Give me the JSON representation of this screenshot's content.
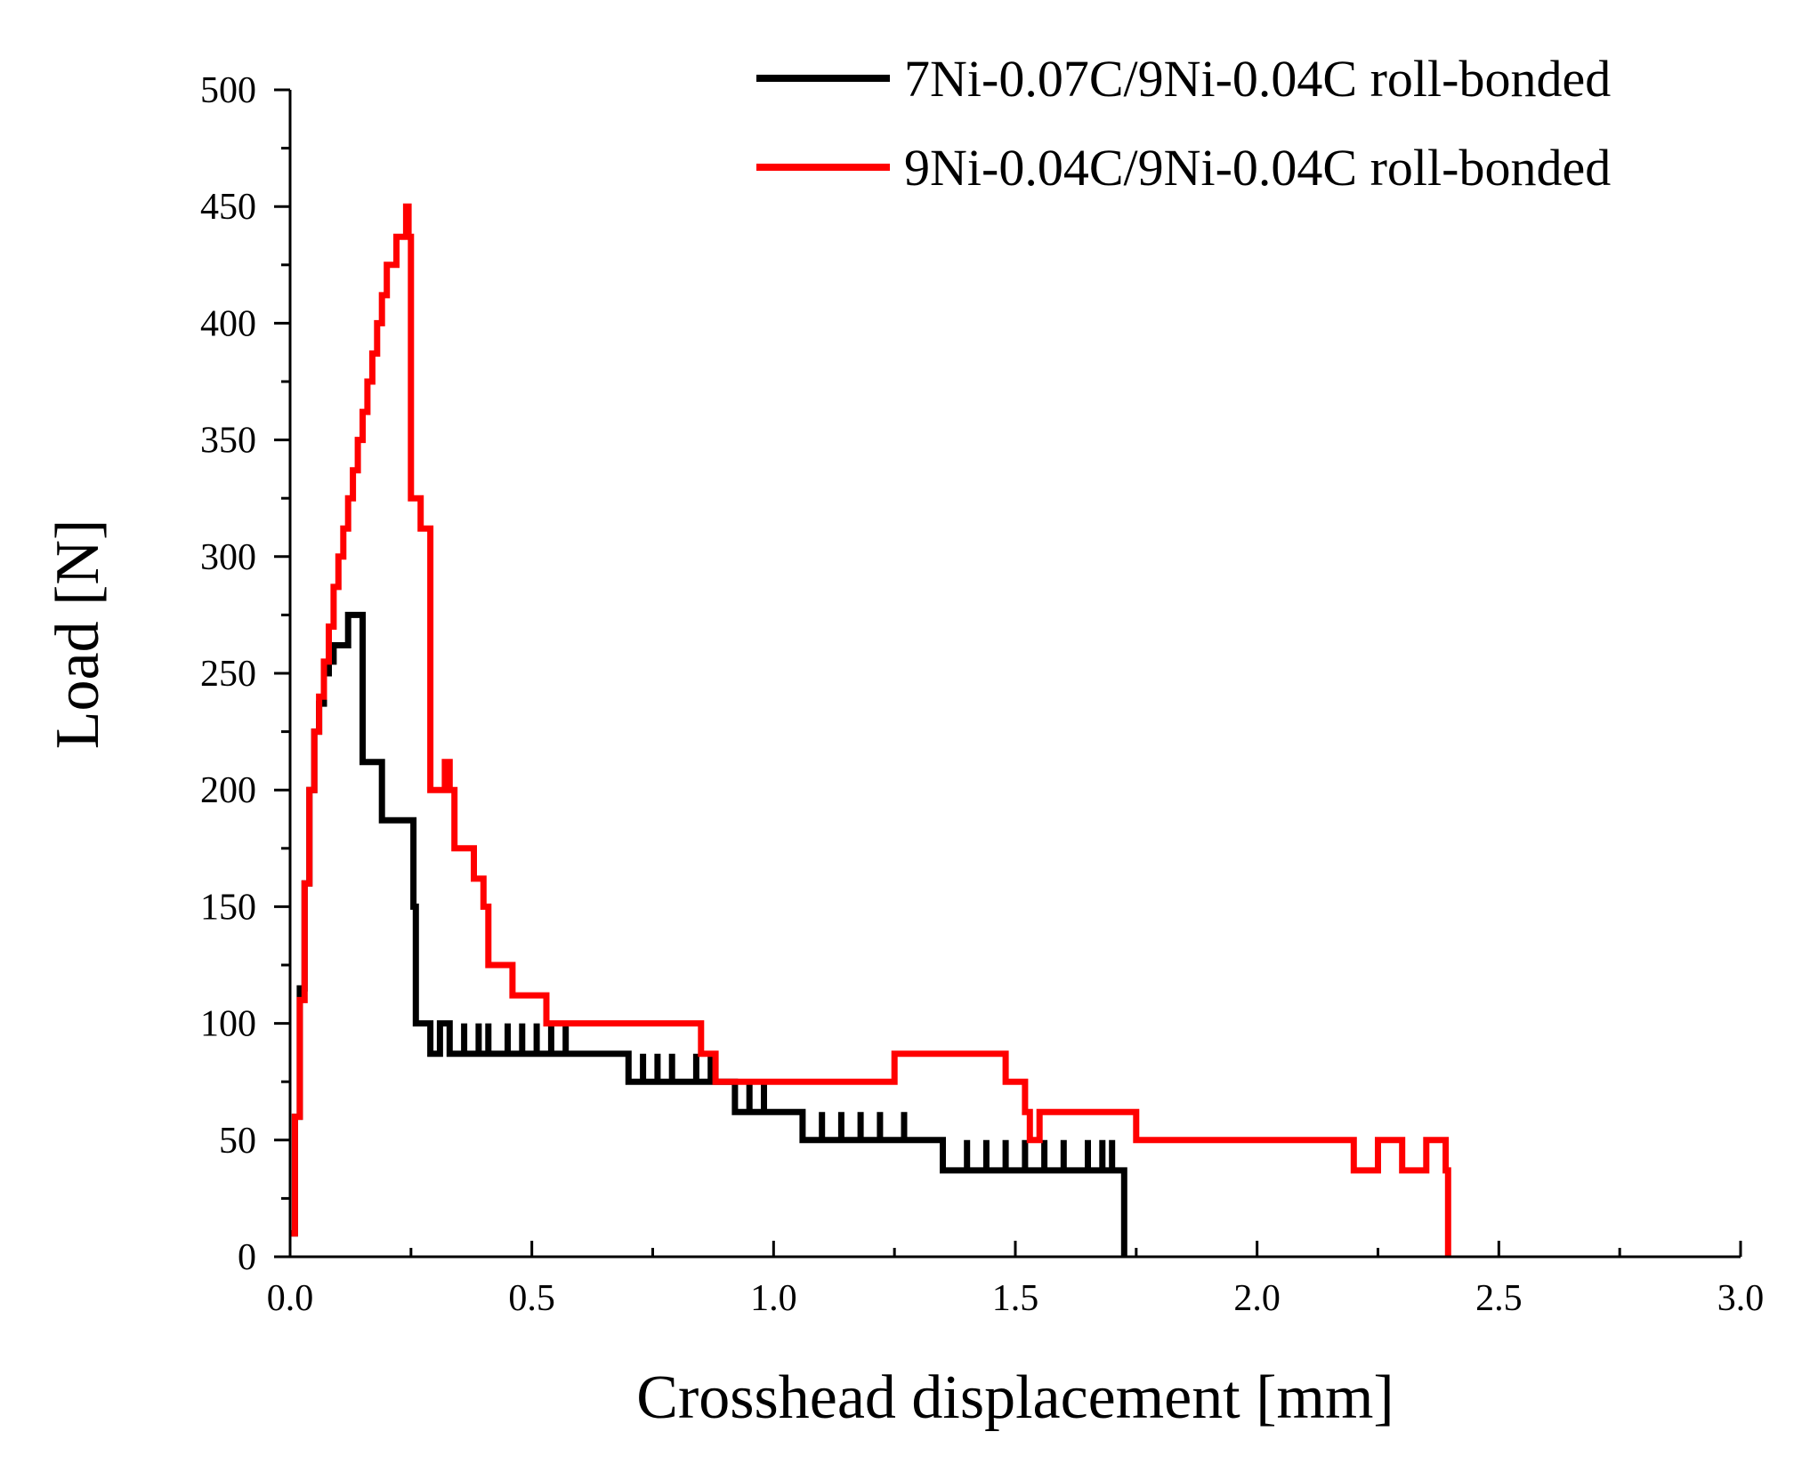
{
  "chart_data": {
    "type": "line",
    "title": "",
    "xlabel": "Crosshead displacement [mm]",
    "ylabel": "Load [N]",
    "xlim": [
      0,
      3.0
    ],
    "ylim": [
      0,
      500
    ],
    "xticks": [
      "0.0",
      "0.5",
      "1.0",
      "1.5",
      "2.0",
      "2.5",
      "3.0"
    ],
    "yticks": [
      "0",
      "50",
      "100",
      "150",
      "200",
      "250",
      "300",
      "350",
      "400",
      "450",
      "500"
    ],
    "legend_position": "top-right",
    "series": [
      {
        "name": "7Ni-0.07C/9Ni-0.04C roll-bonded",
        "color": "#000000",
        "x": [
          0.0,
          0.01,
          0.02,
          0.03,
          0.04,
          0.05,
          0.06,
          0.07,
          0.08,
          0.09,
          0.1,
          0.115,
          0.12,
          0.14,
          0.15,
          0.16,
          0.175,
          0.19,
          0.19,
          0.2,
          0.21,
          0.25,
          0.255,
          0.26,
          0.27,
          0.29,
          0.29,
          0.31,
          0.33,
          0.33,
          0.36,
          0.36,
          0.39,
          0.39,
          0.41,
          0.41,
          0.45,
          0.45,
          0.48,
          0.48,
          0.51,
          0.51,
          0.54,
          0.54,
          0.57,
          0.57,
          0.6,
          0.6,
          0.7,
          0.7,
          0.73,
          0.73,
          0.76,
          0.76,
          0.79,
          0.79,
          0.84,
          0.84,
          0.87,
          0.87,
          0.92,
          0.92,
          0.95,
          0.95,
          0.98,
          0.98,
          1.02,
          1.02,
          1.06,
          1.06,
          1.1,
          1.1,
          1.14,
          1.14,
          1.18,
          1.18,
          1.22,
          1.22,
          1.27,
          1.27,
          1.35,
          1.35,
          1.4,
          1.4,
          1.44,
          1.44,
          1.48,
          1.48,
          1.52,
          1.52,
          1.56,
          1.56,
          1.6,
          1.6,
          1.65,
          1.65,
          1.68,
          1.68,
          1.7,
          1.7,
          1.72,
          1.725,
          1.725
        ],
        "y": [
          10,
          60,
          115,
          160,
          200,
          225,
          237,
          250,
          255,
          262,
          262,
          262,
          275,
          275,
          212,
          212,
          212,
          200,
          187,
          187,
          187,
          187,
          150,
          100,
          100,
          100,
          87,
          100,
          100,
          87,
          100,
          87,
          100,
          87,
          100,
          87,
          100,
          87,
          100,
          87,
          100,
          87,
          100,
          87,
          100,
          87,
          87,
          87,
          87,
          75,
          87,
          75,
          87,
          75,
          87,
          75,
          87,
          75,
          87,
          75,
          75,
          62,
          75,
          62,
          75,
          62,
          62,
          62,
          62,
          50,
          62,
          50,
          62,
          50,
          62,
          50,
          62,
          50,
          62,
          50,
          50,
          37,
          50,
          37,
          50,
          37,
          50,
          37,
          50,
          37,
          50,
          37,
          50,
          37,
          50,
          37,
          50,
          37,
          50,
          37,
          37,
          37,
          0
        ]
      },
      {
        "name": "9Ni-0.04C/9Ni-0.04C roll-bonded",
        "color": "#ff0000",
        "x": [
          0.0,
          0.01,
          0.02,
          0.03,
          0.04,
          0.05,
          0.06,
          0.07,
          0.08,
          0.09,
          0.1,
          0.11,
          0.12,
          0.13,
          0.14,
          0.15,
          0.16,
          0.17,
          0.18,
          0.19,
          0.2,
          0.21,
          0.22,
          0.235,
          0.24,
          0.245,
          0.25,
          0.26,
          0.27,
          0.28,
          0.29,
          0.3,
          0.32,
          0.33,
          0.34,
          0.35,
          0.37,
          0.38,
          0.39,
          0.4,
          0.41,
          0.42,
          0.44,
          0.46,
          0.49,
          0.5,
          0.53,
          0.55,
          0.6,
          0.65,
          0.7,
          0.75,
          0.76,
          0.8,
          0.85,
          0.87,
          0.88,
          0.95,
          1.05,
          1.13,
          1.14,
          1.22,
          1.25,
          1.3,
          1.35,
          1.4,
          1.45,
          1.48,
          1.5,
          1.52,
          1.53,
          1.55,
          1.6,
          1.65,
          1.7,
          1.75,
          1.8,
          1.9,
          2.0,
          2.06,
          2.1,
          2.18,
          2.2,
          2.25,
          2.3,
          2.35,
          2.39,
          2.39,
          2.395
        ],
        "y": [
          10,
          60,
          110,
          160,
          200,
          225,
          240,
          255,
          270,
          287,
          300,
          312,
          325,
          337,
          350,
          362,
          375,
          387,
          400,
          412,
          425,
          425,
          437,
          437,
          450,
          437,
          325,
          325,
          312,
          312,
          200,
          200,
          212,
          200,
          175,
          175,
          175,
          162,
          162,
          150,
          125,
          125,
          125,
          112,
          112,
          112,
          100,
          100,
          100,
          100,
          100,
          100,
          100,
          100,
          87,
          87,
          75,
          75,
          75,
          75,
          75,
          75,
          87,
          87,
          87,
          87,
          87,
          75,
          75,
          62,
          50,
          62,
          62,
          62,
          62,
          50,
          50,
          50,
          50,
          50,
          50,
          50,
          37,
          50,
          37,
          50,
          50,
          37,
          0
        ]
      }
    ]
  }
}
